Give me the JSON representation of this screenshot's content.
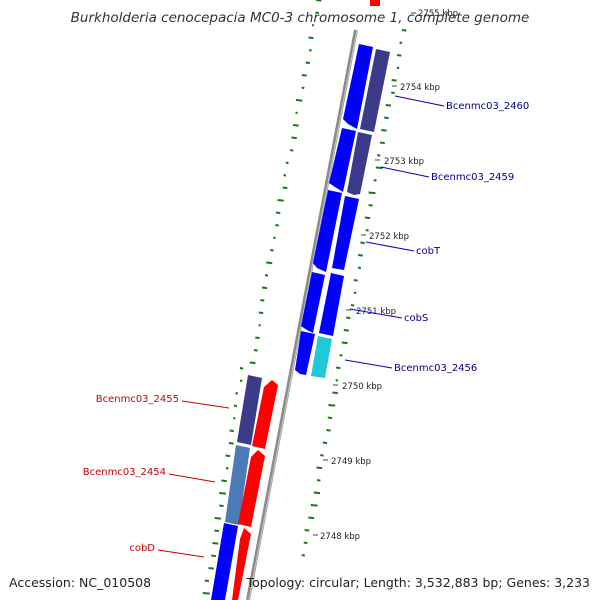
{
  "title": "Burkholderia cenocepacia MC0-3 chromosome 1, complete genome",
  "accession": "Accession: NC_010508",
  "summary": "Topology: circular; Length: 3,532,883 bp; Genes: 3,233",
  "colors": {
    "forward_strand": "#0000ff",
    "reverse_strand": "#ff0000",
    "forward_label": "#00008b",
    "reverse_label": "#cc0000",
    "gc_dash": "#1a7a1a",
    "backbone": "#8c8c8c"
  },
  "ticks": [
    "2755 kbp",
    "2754 kbp",
    "2753 kbp",
    "2752 kbp",
    "2751 kbp",
    "2750 kbp",
    "2749 kbp",
    "2748 kbp"
  ],
  "genes_forward": [
    {
      "label": "Bcenmc03_2460"
    },
    {
      "label": "Bcenmc03_2459"
    },
    {
      "label": "cobT"
    },
    {
      "label": "cobS"
    },
    {
      "label": "Bcenmc03_2456"
    }
  ],
  "genes_reverse": [
    {
      "label": "Bcenmc03_2455"
    },
    {
      "label": "Bcenmc03_2454"
    },
    {
      "label": "cobD"
    }
  ]
}
